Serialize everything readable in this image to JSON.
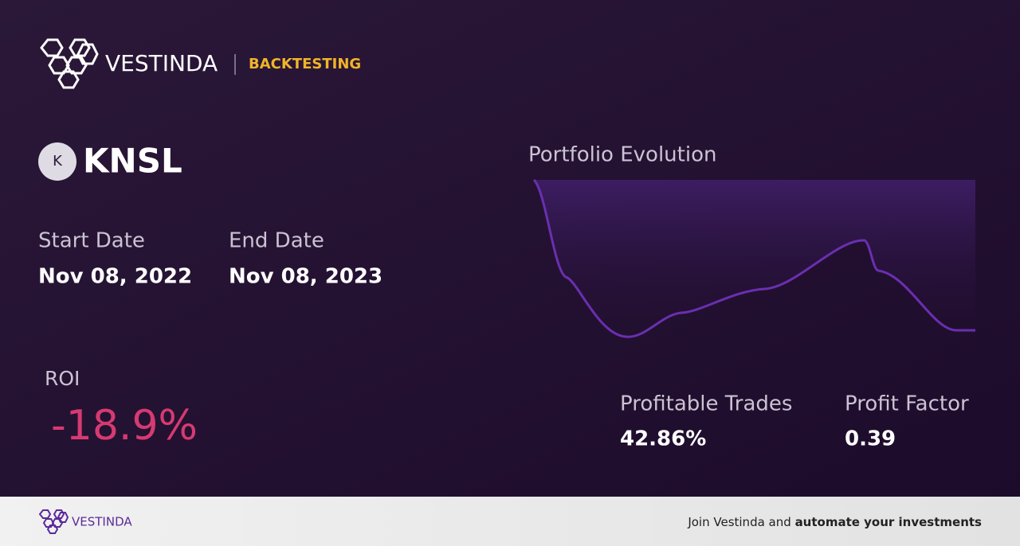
{
  "header": {
    "brand": "VESTINDA",
    "section": "BACKTESTING"
  },
  "asset": {
    "icon_letter": "K",
    "ticker": "KNSL"
  },
  "dates": {
    "start_label": "Start Date",
    "start_value": "Nov 08, 2022",
    "end_label": "End Date",
    "end_value": "Nov 08, 2023"
  },
  "roi": {
    "label": "ROI",
    "value": "-18.9%"
  },
  "portfolio_chart": {
    "title": "Portfolio Evolution"
  },
  "stats": {
    "profitable_trades_label": "Profitable Trades",
    "profitable_trades_value": "42.86%",
    "profit_factor_label": "Profit Factor",
    "profit_factor_value": "0.39"
  },
  "footer": {
    "brand": "VESTINDA",
    "cta_prefix": "Join Vestinda and",
    "cta_bold": "automate your investments"
  }
}
